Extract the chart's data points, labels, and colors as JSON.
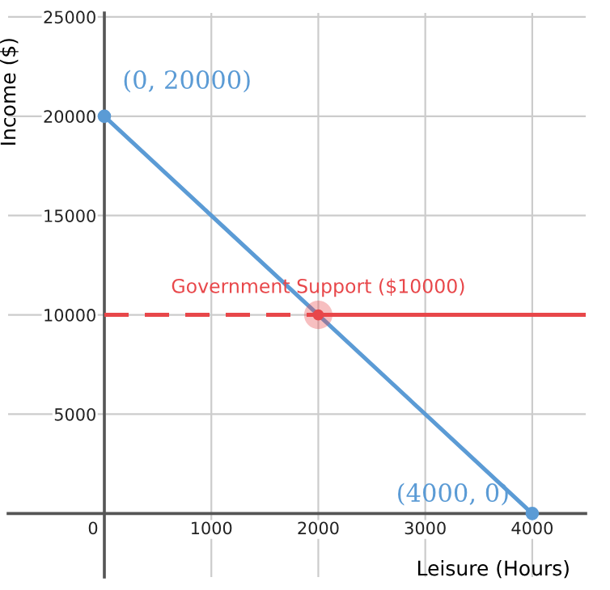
{
  "chart_data": {
    "type": "line",
    "xlabel": "Leisure (Hours)",
    "ylabel": "Income ($)",
    "xlim": [
      -900,
      4500
    ],
    "ylim": [
      -3200,
      25200
    ],
    "xticks": [
      0,
      1000,
      2000,
      3000,
      4000
    ],
    "yticks": [
      5000,
      10000,
      15000,
      20000,
      25000
    ],
    "grid": true,
    "legend": false,
    "series": [
      {
        "color": "#5b9bd5",
        "x": [
          0,
          4000
        ],
        "values": [
          20000,
          0
        ],
        "marker": "circle",
        "line_style": "solid"
      },
      {
        "color": "#e8474a",
        "x": [
          0,
          2000
        ],
        "values": [
          10000,
          10000
        ],
        "line_style": "dashed"
      },
      {
        "color": "#e8474a",
        "x": [
          2000,
          4500
        ],
        "values": [
          10000,
          10000
        ],
        "line_style": "solid"
      },
      {
        "type": "scatter",
        "color": "#e8474a",
        "x": [
          2000
        ],
        "values": [
          10000
        ],
        "marker": "circle"
      }
    ],
    "annotations": [
      {
        "text": "(0, 20000)",
        "x": 0,
        "y": 20000
      },
      {
        "text": "(4000, 0)",
        "x": 4000,
        "y": 0
      },
      {
        "text": "Government Support ($10000)",
        "x": 2000,
        "y": 10000
      }
    ]
  }
}
